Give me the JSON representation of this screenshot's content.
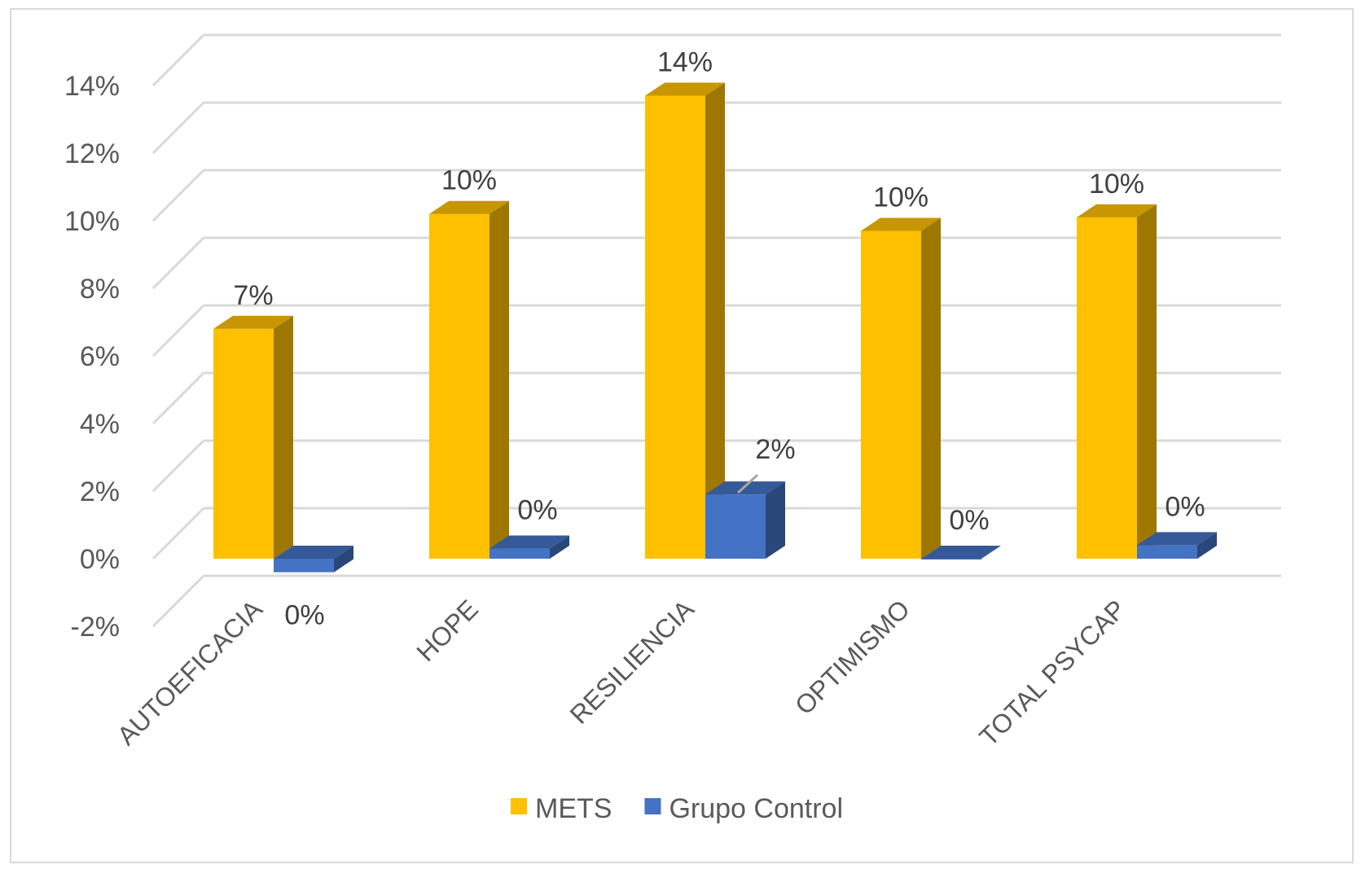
{
  "chart_data": {
    "type": "bar",
    "title": "",
    "xlabel": "",
    "ylabel": "",
    "categories": [
      "AUTOEFICACIA",
      "HOPE",
      "RESILIENCIA",
      "OPTIMISMO",
      "TOTAL PSYCAP"
    ],
    "series": [
      {
        "name": "METS",
        "color": "#FFC000",
        "values": [
          6.8,
          10.2,
          13.7,
          9.7,
          10.1
        ],
        "labels": [
          "7%",
          "10%",
          "14%",
          "10%",
          "10%"
        ]
      },
      {
        "name": "Grupo Control",
        "color": "#4472C4",
        "values": [
          -0.4,
          0.3,
          1.9,
          0.0,
          0.4
        ],
        "labels": [
          "0%",
          "0%",
          "2%",
          "0%",
          "0%"
        ]
      }
    ],
    "ylim": [
      -2,
      14
    ],
    "yticks": [
      "-2%",
      "0%",
      "2%",
      "4%",
      "6%",
      "8%",
      "10%",
      "12%",
      "14%"
    ],
    "grid": true,
    "legend_position": "bottom",
    "style": "3d-clustered-column"
  }
}
